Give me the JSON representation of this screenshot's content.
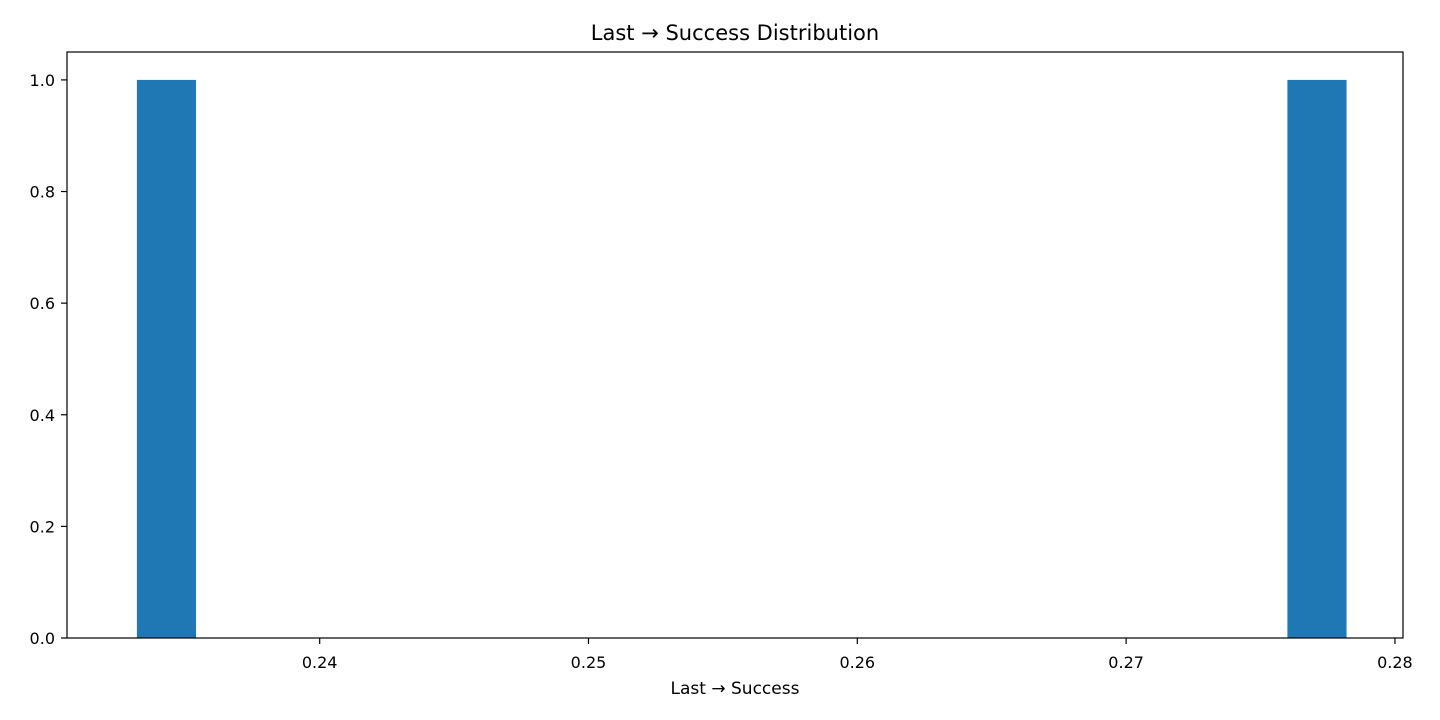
{
  "chart_data": {
    "type": "bar",
    "title": "Last → Success Distribution",
    "xlabel": "Last → Success",
    "ylabel": "",
    "xlim": [
      0.2306,
      0.2803
    ],
    "ylim": [
      0,
      1.05
    ],
    "xticks": [
      0.24,
      0.25,
      0.26,
      0.27,
      0.28
    ],
    "xtick_labels": [
      "0.24",
      "0.25",
      "0.26",
      "0.27",
      "0.28"
    ],
    "yticks": [
      0.0,
      0.2,
      0.4,
      0.6,
      0.8,
      1.0
    ],
    "ytick_labels": [
      "0.0",
      "0.2",
      "0.4",
      "0.6",
      "0.8",
      "1.0"
    ],
    "bins": [
      {
        "x0": 0.2332,
        "x1": 0.2354,
        "count": 1
      },
      {
        "x0": 0.276,
        "x1": 0.2782,
        "count": 1
      }
    ],
    "grid": false,
    "bar_color": "#1f77b4"
  }
}
